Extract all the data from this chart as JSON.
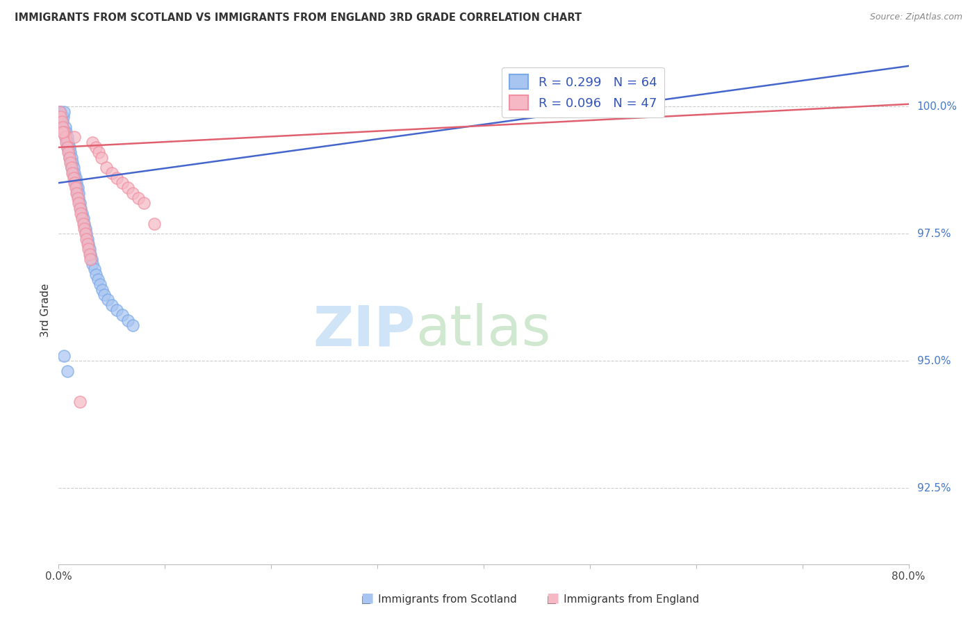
{
  "title": "IMMIGRANTS FROM SCOTLAND VS IMMIGRANTS FROM ENGLAND 3RD GRADE CORRELATION CHART",
  "source": "Source: ZipAtlas.com",
  "ylabel": "3rd Grade",
  "ylabel_right_ticks": [
    92.5,
    95.0,
    97.5,
    100.0
  ],
  "ylabel_right_labels": [
    "92.5%",
    "95.0%",
    "97.5%",
    "100.0%"
  ],
  "xmin": 0.0,
  "xmax": 80.0,
  "ymin": 91.0,
  "ymax": 101.0,
  "scotland_color_fill": "#a8c4f0",
  "scotland_color_edge": "#7aaae8",
  "england_color_fill": "#f5b8c4",
  "england_color_edge": "#f090a0",
  "scotland_line_color": "#4466cc",
  "england_line_color": "#e06070",
  "scotland_R": 0.299,
  "scotland_N": 64,
  "england_R": 0.096,
  "england_N": 47,
  "scotland_x": [
    0.1,
    0.15,
    0.2,
    0.25,
    0.3,
    0.35,
    0.4,
    0.45,
    0.5,
    0.55,
    0.6,
    0.65,
    0.7,
    0.75,
    0.8,
    0.85,
    0.9,
    0.95,
    1.0,
    1.05,
    1.1,
    1.15,
    1.2,
    1.25,
    1.3,
    1.35,
    1.4,
    1.45,
    1.5,
    1.55,
    1.6,
    1.65,
    1.7,
    1.75,
    1.8,
    1.85,
    1.9,
    2.0,
    2.1,
    2.2,
    2.3,
    2.4,
    2.5,
    2.6,
    2.7,
    2.8,
    2.9,
    3.0,
    3.1,
    3.2,
    3.4,
    3.5,
    3.7,
    3.9,
    4.1,
    4.3,
    4.6,
    5.0,
    5.5,
    6.0,
    6.5,
    7.0,
    0.5,
    0.8
  ],
  "scotland_y": [
    99.9,
    99.8,
    99.9,
    99.7,
    99.8,
    99.6,
    99.7,
    99.8,
    99.9,
    99.5,
    99.6,
    99.4,
    99.5,
    99.3,
    99.4,
    99.2,
    99.3,
    99.1,
    99.2,
    99.0,
    99.1,
    98.9,
    99.0,
    98.8,
    98.9,
    98.7,
    98.8,
    98.6,
    98.7,
    98.5,
    98.6,
    98.4,
    98.5,
    98.3,
    98.4,
    98.2,
    98.3,
    98.1,
    98.0,
    97.9,
    97.8,
    97.7,
    97.6,
    97.5,
    97.4,
    97.3,
    97.2,
    97.1,
    97.0,
    96.9,
    96.8,
    96.7,
    96.6,
    96.5,
    96.4,
    96.3,
    96.2,
    96.1,
    96.0,
    95.9,
    95.8,
    95.7,
    95.1,
    94.8
  ],
  "england_x": [
    0.1,
    0.2,
    0.3,
    0.4,
    0.5,
    0.6,
    0.7,
    0.8,
    0.9,
    1.0,
    1.1,
    1.2,
    1.3,
    1.4,
    1.5,
    1.6,
    1.7,
    1.8,
    1.9,
    2.0,
    2.1,
    2.2,
    2.3,
    2.4,
    2.5,
    2.6,
    2.7,
    2.8,
    2.9,
    3.0,
    3.2,
    3.5,
    3.8,
    4.0,
    4.5,
    5.0,
    5.5,
    6.0,
    6.5,
    7.0,
    7.5,
    8.0,
    9.0,
    44.0,
    0.35,
    1.5,
    2.0
  ],
  "england_y": [
    99.9,
    99.8,
    99.7,
    99.6,
    99.5,
    99.4,
    99.3,
    99.2,
    99.1,
    99.0,
    98.9,
    98.8,
    98.7,
    98.6,
    98.5,
    98.4,
    98.3,
    98.2,
    98.1,
    98.0,
    97.9,
    97.8,
    97.7,
    97.6,
    97.5,
    97.4,
    97.3,
    97.2,
    97.1,
    97.0,
    99.3,
    99.2,
    99.1,
    99.0,
    98.8,
    98.7,
    98.6,
    98.5,
    98.4,
    98.3,
    98.2,
    98.1,
    97.7,
    100.0,
    99.5,
    99.4,
    94.2
  ],
  "sc_line_x0": 0.0,
  "sc_line_y0": 98.5,
  "sc_line_x1": 80.0,
  "sc_line_y1": 100.8,
  "en_line_x0": 0.0,
  "en_line_y0": 99.2,
  "en_line_x1": 80.0,
  "en_line_y1": 100.05,
  "grid_color": "#cccccc",
  "watermark_zip_color": "#d0e4f7",
  "watermark_atlas_color": "#d0e8d0",
  "bottom_legend_label1": "Immigrants from Scotland",
  "bottom_legend_label2": "Immigrants from England"
}
